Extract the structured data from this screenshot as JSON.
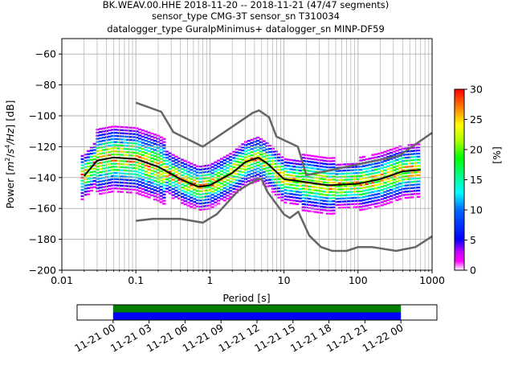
{
  "chart_data": [
    {
      "type": "heatmap",
      "title_lines": [
        "BK.WEAV.00.HHE   2018-11-20 -- 2018-11-21  (47/47 segments)",
        "sensor_type CMG-3T sensor_sn T310034",
        "datalogger_type GuralpMinimus+ datalogger_sn MINP-DF59"
      ],
      "xlabel": "Period [s]",
      "ylabel_parts": [
        "Power [",
        "m",
        "2",
        "/",
        "s",
        "4",
        "/Hz",
        "] [dB]"
      ],
      "x_scale": "log",
      "xlim": [
        0.01,
        1000
      ],
      "ylim": [
        -200,
        -50
      ],
      "x_ticks": [
        {
          "v": 0.01,
          "label": "0.01"
        },
        {
          "v": 0.1,
          "label": "0.1"
        },
        {
          "v": 1,
          "label": "1"
        },
        {
          "v": 10,
          "label": "10"
        },
        {
          "v": 100,
          "label": "100"
        },
        {
          "v": 1000,
          "label": "1000"
        }
      ],
      "y_ticks": [
        {
          "v": -60,
          "label": "−60"
        },
        {
          "v": -80,
          "label": "−80"
        },
        {
          "v": -100,
          "label": "−100"
        },
        {
          "v": -120,
          "label": "−120"
        },
        {
          "v": -140,
          "label": "−140"
        },
        {
          "v": -160,
          "label": "−160"
        },
        {
          "v": -180,
          "label": "−180"
        },
        {
          "v": -200,
          "label": "−200"
        }
      ],
      "grid": true,
      "noise_model_high": {
        "x": [
          0.1,
          0.22,
          0.32,
          0.8,
          3.8,
          4.6,
          6.3,
          7.9,
          15.4,
          20,
          354.8,
          1000
        ],
        "y": [
          -91.5,
          -97.4,
          -110.5,
          -120,
          -98,
          -96.5,
          -101,
          -113.5,
          -120,
          -138.5,
          -126,
          -111
        ]
      },
      "noise_model_low": {
        "x": [
          0.1,
          0.17,
          0.4,
          0.8,
          1.24,
          2.4,
          4.3,
          5,
          6,
          10,
          12,
          15.6,
          21.9,
          31.6,
          45,
          70,
          101,
          154,
          328,
          600,
          1000
        ],
        "y": [
          -168,
          -166.7,
          -166.7,
          -169.2,
          -163.7,
          -148.6,
          -141.1,
          -141.1,
          -149.4,
          -163.8,
          -166.2,
          -162.1,
          -177.5,
          -185,
          -187.5,
          -187.5,
          -185,
          -185,
          -187.5,
          -185,
          -178
        ]
      },
      "mode_line": {
        "x": [
          0.02,
          0.03,
          0.05,
          0.1,
          0.2,
          0.4,
          0.7,
          1,
          2,
          3,
          4.5,
          6,
          10,
          20,
          40,
          100,
          200,
          400,
          700
        ],
        "y": [
          -139,
          -129,
          -127,
          -128,
          -133,
          -141,
          -146,
          -145,
          -137,
          -130,
          -127,
          -131,
          -141,
          -143,
          -145,
          -144,
          -141,
          -136,
          -135
        ]
      },
      "colorbar": {
        "label": "[%]",
        "min": 0,
        "max": 30,
        "ticks": [
          {
            "v": 0,
            "label": "0"
          },
          {
            "v": 5,
            "label": "5"
          },
          {
            "v": 10,
            "label": "10"
          },
          {
            "v": 15,
            "label": "15"
          },
          {
            "v": 20,
            "label": "20"
          },
          {
            "v": 25,
            "label": "25"
          },
          {
            "v": 30,
            "label": "30"
          }
        ]
      }
    },
    {
      "type": "bar",
      "title": "",
      "x_ticks": [
        "11-21 00",
        "11-21 03",
        "11-21 06",
        "11-21 09",
        "11-21 12",
        "11-21 15",
        "11-21 18",
        "11-21 21",
        "11-22 00"
      ],
      "xlim_hours": [
        -3,
        27
      ],
      "coverage_hours": [
        0,
        24
      ],
      "coverage_colors": [
        "#008000",
        "#0000ff"
      ]
    }
  ]
}
